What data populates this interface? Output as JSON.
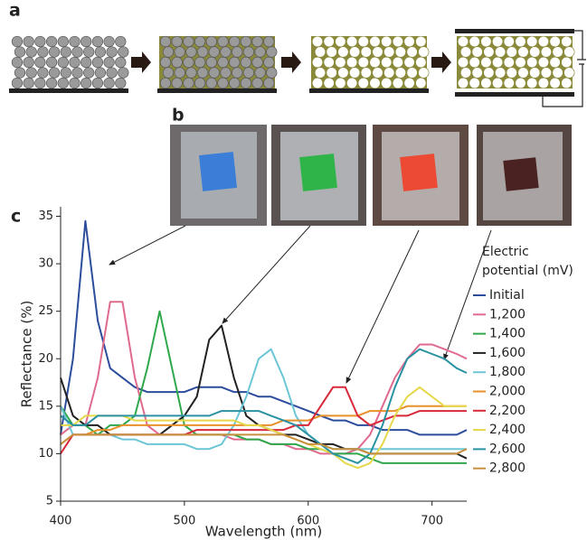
{
  "panel_labels": [
    "a",
    "b",
    "c"
  ],
  "chart_data": {
    "type": "line",
    "xlabel": "Wavelength (nm)",
    "ylabel": "Reflectance (%)",
    "legend_title": [
      "Electric",
      "potential (mV)"
    ],
    "x": [
      400,
      410,
      420,
      430,
      440,
      450,
      460,
      470,
      480,
      490,
      500,
      510,
      520,
      530,
      540,
      550,
      560,
      570,
      580,
      590,
      600,
      610,
      620,
      630,
      640,
      650,
      660,
      670,
      680,
      690,
      700,
      710,
      720,
      728
    ],
    "xlim": [
      400,
      728
    ],
    "xticks": [
      400,
      500,
      600,
      700
    ],
    "ylim": [
      5,
      36
    ],
    "yticks": [
      5,
      10,
      15,
      20,
      25,
      30,
      35
    ],
    "series": [
      {
        "name": "Initial",
        "color": "#2c4c9c",
        "values": [
          12,
          20,
          34.5,
          24,
          19,
          18,
          17,
          16.5,
          16.5,
          16.5,
          16.5,
          17,
          17,
          17,
          16.5,
          16.5,
          16,
          16,
          15.5,
          15,
          14.5,
          14,
          13.5,
          13.5,
          13,
          13,
          12.5,
          12.5,
          12.5,
          12,
          12,
          12,
          12,
          12.5
        ]
      },
      {
        "name": "1,200",
        "color": "#e06a8e",
        "values": [
          12,
          13,
          13,
          18,
          26,
          26,
          18,
          13,
          12,
          12,
          12,
          12,
          12,
          12,
          11.5,
          11.5,
          11.5,
          11,
          11,
          10.5,
          10.5,
          10,
          10,
          10,
          10.5,
          12,
          15,
          18,
          20,
          21.5,
          21.5,
          21,
          20.5,
          20
        ]
      },
      {
        "name": "1,400",
        "color": "#2fa84c",
        "values": [
          15,
          13,
          13,
          12,
          13,
          13,
          14,
          19,
          25,
          19,
          13,
          12,
          12,
          12,
          12,
          11.5,
          11.5,
          11,
          11,
          11,
          10.5,
          10.5,
          10,
          10,
          10,
          9.5,
          9,
          9,
          9,
          9,
          9,
          9,
          9,
          9
        ]
      },
      {
        "name": "1,600",
        "color": "#222222",
        "values": [
          18,
          14,
          13,
          13,
          12,
          12,
          12,
          12,
          12,
          13,
          14,
          16,
          22,
          23.5,
          18,
          14,
          13,
          12.5,
          12,
          12,
          11.5,
          11,
          11,
          10.5,
          10.5,
          10,
          10,
          10,
          10,
          10,
          10,
          10,
          10,
          9.5
        ]
      },
      {
        "name": "1,800",
        "color": "#6cc6d6",
        "values": [
          15,
          12,
          12,
          12,
          12,
          11.5,
          11.5,
          11,
          11,
          11,
          11,
          10.5,
          10.5,
          11,
          13,
          16,
          20,
          21,
          18,
          14,
          12,
          11,
          10.5,
          10.5,
          10.5,
          10.5,
          10.5,
          10.5,
          10.5,
          10.5,
          10.5,
          10.5,
          10.5,
          10.5
        ]
      },
      {
        "name": "2,000",
        "color": "#e8902a",
        "values": [
          11,
          12,
          12,
          12.5,
          12.5,
          13,
          13,
          13,
          13,
          13,
          13,
          13,
          13,
          13,
          13,
          13,
          13,
          13,
          13.5,
          13.5,
          13.5,
          14,
          14,
          14,
          14,
          14.5,
          14.5,
          14.5,
          15,
          15,
          15,
          15,
          15,
          15
        ]
      },
      {
        "name": "2,200",
        "color": "#d8283a",
        "values": [
          10,
          12,
          12,
          12,
          12,
          12,
          12,
          12,
          12,
          12,
          12,
          12.5,
          12.5,
          12.5,
          12.5,
          12.5,
          12.5,
          12.5,
          12.5,
          13,
          13,
          15,
          17,
          17,
          14,
          13,
          13.5,
          14,
          14,
          14.5,
          14.5,
          14.5,
          14.5,
          14.5
        ]
      },
      {
        "name": "2,400",
        "color": "#e6d84a",
        "values": [
          13,
          13,
          14,
          14,
          14,
          14,
          13.5,
          13.5,
          13.5,
          13.5,
          13.5,
          13.5,
          13.5,
          13.5,
          13.5,
          13,
          13,
          12.5,
          12,
          11.5,
          11,
          10.5,
          10,
          9,
          8.5,
          9,
          11,
          14,
          16,
          17,
          16,
          15,
          15,
          15
        ]
      },
      {
        "name": "2,600",
        "color": "#2a92a2",
        "values": [
          14,
          13,
          13,
          14,
          14,
          14,
          14,
          14,
          14,
          14,
          14,
          14,
          14,
          14.5,
          14.5,
          14.5,
          14.5,
          14,
          13.5,
          13,
          12,
          11,
          10,
          9.5,
          9,
          10,
          13,
          17,
          20,
          21,
          20.5,
          20,
          19,
          18.5
        ]
      },
      {
        "name": "2,800",
        "color": "#c8903e",
        "values": [
          11,
          12,
          12,
          12,
          12,
          12,
          12,
          12,
          12,
          12,
          12,
          12,
          12,
          12,
          12,
          12,
          12,
          12,
          12,
          11.5,
          11,
          11,
          10.5,
          10.5,
          10.5,
          10,
          10,
          10,
          10,
          10,
          10,
          10,
          10,
          10.5
        ]
      }
    ]
  }
}
